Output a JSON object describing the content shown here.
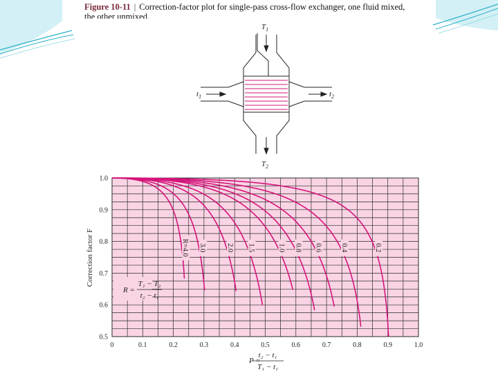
{
  "caption": {
    "label": "Figure 10-11",
    "line1": "Correction-factor plot for single-pass cross-flow exchanger, one fluid mixed,",
    "line2": "the other unmixed."
  },
  "schematic": {
    "top_label": "T",
    "top_sub": "1",
    "bottom_label": "T",
    "bottom_sub": "2",
    "left_label": "t",
    "left_sub": "1",
    "right_label": "t",
    "right_sub": "2"
  },
  "colors": {
    "plot_bg": "#f9d4e4",
    "grid": "#2a2a2a",
    "curve": "#d4147a",
    "accent_deco": "#2ab0c8"
  },
  "chart_data": {
    "type": "line",
    "title": "",
    "xlabel": "P",
    "ylabel": "Correction factor F",
    "xlim": [
      0,
      1.0
    ],
    "ylim": [
      0.5,
      1.0
    ],
    "grid": true,
    "x_ticks": [
      "0",
      "0.1",
      "0.2",
      "0.3",
      "0.4",
      "0.5",
      "0.6",
      "0.7",
      "0.8",
      "0.9",
      "1.0"
    ],
    "y_ticks": [
      "0.5",
      "0.6",
      "0.7",
      "0.8",
      "0.9",
      "1.0"
    ],
    "x_formula": {
      "prefix": "P =",
      "numerator": "t₂ − t₁",
      "denominator": "T₁ − t₁"
    },
    "r_formula": {
      "prefix": "R =",
      "numerator": "T₁ − T₂",
      "denominator": "t₂ − t₁"
    },
    "series": [
      {
        "name": "R=4.0",
        "R": 4.0,
        "end_p": 0.236
      },
      {
        "name": "3.0",
        "R": 3.0,
        "end_p": 0.302
      },
      {
        "name": "2.0",
        "R": 2.0,
        "end_p": 0.405
      },
      {
        "name": "1.5",
        "R": 1.5,
        "end_p": 0.491
      },
      {
        "name": "1.0",
        "R": 1.0,
        "end_p": 0.59
      },
      {
        "name": "0.8",
        "R": 0.8,
        "end_p": 0.661
      },
      {
        "name": "0.6",
        "R": 0.6,
        "end_p": 0.725
      },
      {
        "name": "0.4",
        "R": 0.4,
        "end_p": 0.812
      },
      {
        "name": "0.2",
        "R": 0.2,
        "end_p": 0.905
      }
    ]
  }
}
